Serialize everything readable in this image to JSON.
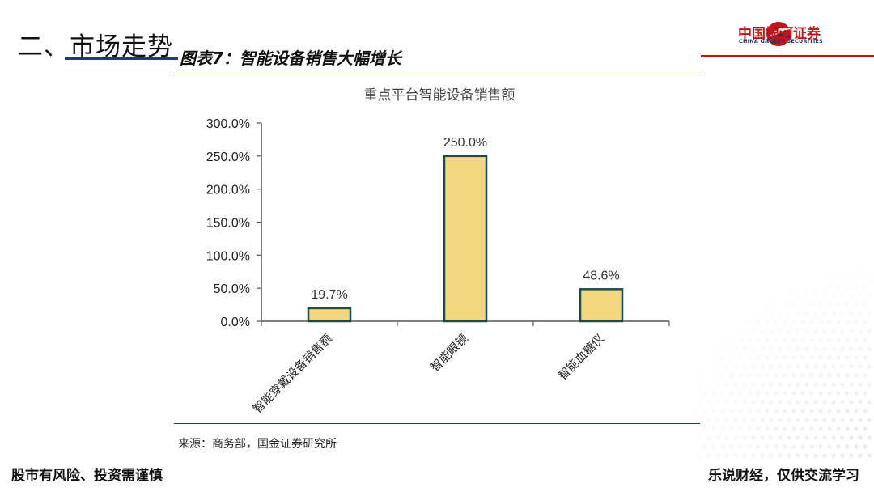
{
  "section": {
    "title": "二、市场走势"
  },
  "logo": {
    "cn": "中国银河证券",
    "en": "CHINA GALAXY SECURITIES"
  },
  "figure": {
    "caption": "图表7：智能设备销售大幅增长"
  },
  "source": "来源：商务部，国金证券研究所",
  "footer": {
    "left": "股市有风险、投资需谨慎",
    "right": "乐说财经，仅供交流学习"
  },
  "colors": {
    "bar_fill": "#F2D77E",
    "bar_stroke": "#1F4A4A",
    "axis": "#555555",
    "brand_red": "#C0151B",
    "brand_blue": "#1B2F6B"
  },
  "chart_data": {
    "type": "bar",
    "title": "重点平台智能设备销售额",
    "categories": [
      "智能穿戴设备销售额",
      "智能眼镜",
      "智能血糖仪"
    ],
    "values": [
      19.7,
      250.0,
      48.6
    ],
    "value_labels": [
      "19.7%",
      "250.0%",
      "48.6%"
    ],
    "ylim": [
      0,
      300
    ],
    "yticks": [
      0,
      50,
      100,
      150,
      200,
      250,
      300
    ],
    "ytick_labels": [
      "0.0%",
      "50.0%",
      "100.0%",
      "150.0%",
      "200.0%",
      "250.0%",
      "300.0%"
    ],
    "xlabel": "",
    "ylabel": "",
    "grid": false,
    "legend": "none"
  }
}
